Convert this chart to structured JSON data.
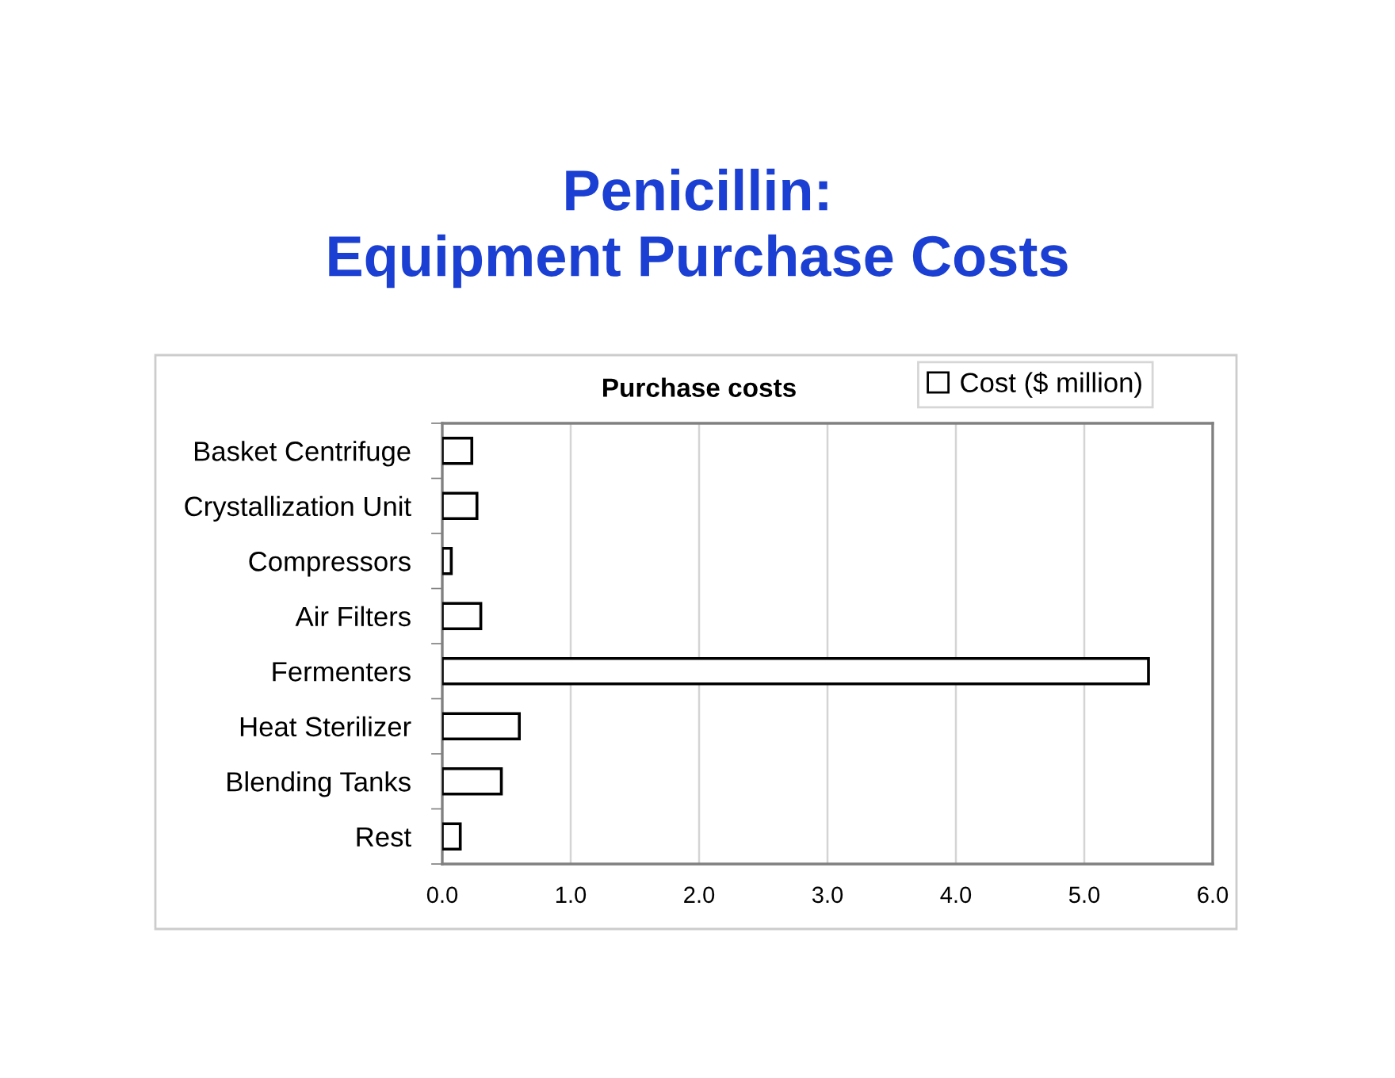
{
  "chart_data": {
    "type": "bar",
    "orientation": "horizontal",
    "title": "Penicillin:\nEquipment Purchase Costs",
    "subtitle": "Purchase costs",
    "categories": [
      "Basket Centrifuge",
      "Crystallization Unit",
      "Compressors",
      "Air Filters",
      "Fermenters",
      "Heat Sterilizer",
      "Blending Tanks",
      "Rest"
    ],
    "series": [
      {
        "name": "Cost ($ million)",
        "color": "#ffffff",
        "values": [
          0.23,
          0.27,
          0.07,
          0.3,
          5.5,
          0.6,
          0.46,
          0.14
        ]
      }
    ],
    "xlim": [
      0,
      6
    ],
    "xticks": [
      {
        "value": 0,
        "label": "0.0"
      },
      {
        "value": 1,
        "label": "1.0"
      },
      {
        "value": 2,
        "label": "2.0"
      },
      {
        "value": 3,
        "label": "3.0"
      },
      {
        "value": 4,
        "label": "4.0"
      },
      {
        "value": 5,
        "label": "5.0"
      },
      {
        "value": 6,
        "label": "6.0"
      }
    ],
    "grid": "x",
    "legend": "top right"
  }
}
